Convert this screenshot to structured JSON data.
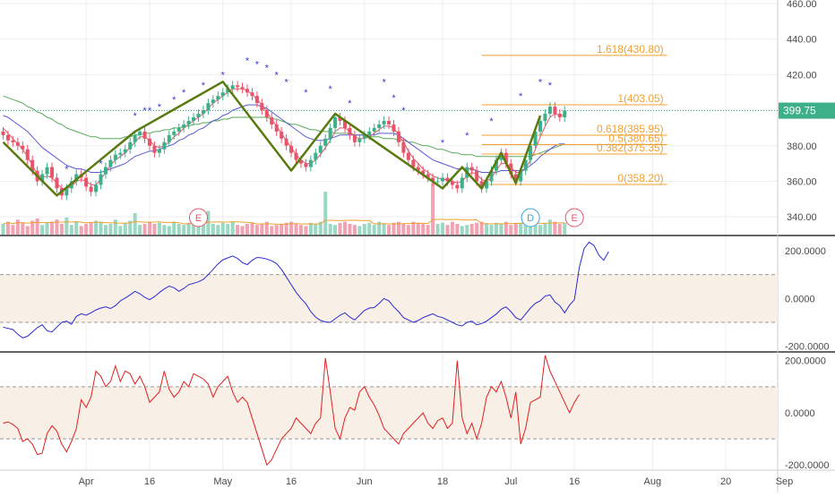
{
  "colors": {
    "up": "#3db08a",
    "down": "#e8546a",
    "volume_up": "#9ad8c4",
    "volume_down": "#f2a2b0",
    "ma_fast": "#e8546a",
    "ma_mid": "#5a5ad6",
    "ma_slow": "#5aaa5a",
    "zigzag": "#5a7a10",
    "fib": "#f0a030",
    "star": "#3a3ad6",
    "osc1": "#2a2ad0",
    "osc2": "#e02020",
    "band_fill": "#f8efe6",
    "last_price_bg": "#3db08a",
    "event_e": "#e8546a",
    "event_d": "#3aa3e0"
  },
  "chart_data": [
    {
      "type": "candlestick",
      "x_tick_labels": [
        "Apr",
        "16",
        "May",
        "16",
        "Jun",
        "18",
        "Jul",
        "16",
        "Aug",
        "20",
        "Sep"
      ],
      "y_tick_labels": [
        "460.00",
        "440.00",
        "420.00",
        "400.00",
        "380.00",
        "360.00",
        "340.00"
      ],
      "ylim": [
        330,
        462
      ],
      "y_ticks": [
        460,
        440,
        420,
        400,
        380,
        360,
        340
      ],
      "last_price_label": "399.75",
      "last_price": 399.75,
      "close": [
        386,
        383,
        382,
        380,
        378,
        372,
        366,
        360,
        364,
        368,
        362,
        356,
        352,
        356,
        360,
        364,
        362,
        357,
        354,
        358,
        364,
        368,
        372,
        375,
        376,
        378,
        382,
        386,
        388,
        384,
        380,
        376,
        378,
        382,
        386,
        388,
        390,
        392,
        394,
        396,
        398,
        400,
        404,
        406,
        408,
        410,
        412,
        414,
        413,
        412,
        410,
        408,
        404,
        400,
        396,
        392,
        388,
        384,
        380,
        376,
        372,
        370,
        368,
        372,
        376,
        380,
        384,
        390,
        396,
        394,
        390,
        386,
        382,
        384,
        386,
        388,
        390,
        392,
        394,
        392,
        388,
        382,
        376,
        372,
        368,
        366,
        364,
        362,
        360,
        360,
        362,
        360,
        358,
        356,
        362,
        368,
        366,
        360,
        356,
        360,
        366,
        372,
        376,
        370,
        364,
        360,
        366,
        372,
        380,
        388,
        394,
        398,
        402,
        398,
        396,
        399.75
      ],
      "ma_fast": [
        390,
        387,
        384,
        381,
        378,
        374,
        369,
        364,
        362,
        363,
        362,
        359,
        356,
        356,
        357,
        360,
        361,
        360,
        358,
        358,
        361,
        365,
        369,
        372,
        374,
        376,
        379,
        382,
        385,
        385,
        383,
        380,
        379,
        380,
        382,
        385,
        387,
        390,
        392,
        394,
        396,
        398,
        401,
        404,
        406,
        408,
        410,
        412,
        412,
        412,
        411,
        409,
        406,
        403,
        399,
        395,
        391,
        387,
        383,
        379,
        375,
        372,
        370,
        370,
        372,
        375,
        379,
        383,
        388,
        390,
        390,
        388,
        385,
        384,
        384,
        385,
        387,
        389,
        391,
        391,
        390,
        386,
        382,
        377,
        373,
        370,
        367,
        365,
        363,
        362,
        361,
        361,
        360,
        359,
        360,
        363,
        365,
        364,
        361,
        360,
        362,
        366,
        370,
        370,
        368,
        365,
        365,
        367,
        372,
        378,
        385,
        391,
        396,
        398,
        397,
        397
      ],
      "ma_mid": [
        397,
        396,
        394,
        392,
        390,
        388,
        385,
        382,
        379,
        377,
        375,
        373,
        371,
        369,
        368,
        367,
        367,
        366,
        365,
        365,
        365,
        366,
        367,
        368,
        369,
        370,
        372,
        374,
        375,
        376,
        377,
        377,
        378,
        379,
        380,
        381,
        383,
        384,
        386,
        387,
        389,
        390,
        392,
        394,
        395,
        397,
        398,
        400,
        401,
        402,
        403,
        403,
        403,
        402,
        401,
        399,
        397,
        395,
        393,
        391,
        389,
        387,
        385,
        384,
        383,
        383,
        383,
        384,
        385,
        386,
        386,
        386,
        386,
        386,
        386,
        386,
        386,
        387,
        387,
        387,
        387,
        386,
        384,
        382,
        380,
        378,
        376,
        374,
        372,
        371,
        370,
        369,
        368,
        367,
        367,
        367,
        367,
        366,
        365,
        365,
        365,
        365,
        366,
        366,
        366,
        366,
        366,
        367,
        369,
        371,
        374,
        376,
        378,
        380,
        381,
        381
      ],
      "ma_slow": [
        408,
        407,
        406,
        405,
        404,
        402,
        401,
        399,
        398,
        396,
        395,
        393,
        392,
        390,
        389,
        388,
        387,
        386,
        385,
        385,
        384,
        384,
        384,
        384,
        384,
        385,
        385,
        386,
        386,
        387,
        387,
        388,
        388,
        389,
        389,
        390,
        390,
        391,
        391,
        392,
        392,
        393,
        393,
        394,
        394,
        395,
        395,
        396,
        396,
        396,
        396,
        396,
        396,
        396,
        396,
        395,
        395,
        394,
        393,
        392,
        392,
        391,
        390,
        389,
        389,
        388,
        388,
        388,
        387,
        387,
        387,
        387,
        386,
        386,
        386,
        385,
        385,
        385,
        384,
        384,
        384,
        383,
        383,
        382,
        382,
        381,
        380,
        380,
        379,
        378,
        378,
        377,
        376,
        376,
        375,
        375,
        375,
        374,
        374,
        374,
        374,
        374,
        374,
        374,
        374,
        374,
        374,
        374,
        374,
        375,
        376,
        377,
        378,
        379,
        380,
        381
      ],
      "zigzag": [
        [
          0,
          382
        ],
        [
          11,
          352
        ],
        [
          27,
          388
        ],
        [
          45,
          416
        ],
        [
          59,
          366
        ],
        [
          68,
          398
        ],
        [
          90,
          356
        ],
        [
          94,
          368
        ],
        [
          98,
          356
        ],
        [
          102,
          376
        ],
        [
          105,
          359
        ],
        [
          110,
          397
        ]
      ],
      "star_markers": [
        [
          13,
          365
        ],
        [
          20,
          368
        ],
        [
          27,
          395
        ],
        [
          29,
          398
        ],
        [
          30,
          398
        ],
        [
          32,
          400
        ],
        [
          35,
          404
        ],
        [
          37,
          408
        ],
        [
          41,
          412
        ],
        [
          45,
          418
        ],
        [
          50,
          426
        ],
        [
          52,
          424
        ],
        [
          54,
          422
        ],
        [
          56,
          418
        ],
        [
          58,
          414
        ],
        [
          62,
          408
        ],
        [
          67,
          410
        ],
        [
          71,
          402
        ],
        [
          78,
          414
        ],
        [
          80,
          405
        ],
        [
          82,
          398
        ],
        [
          90,
          380
        ],
        [
          95,
          384
        ],
        [
          100,
          392
        ],
        [
          106,
          406
        ],
        [
          110,
          414
        ],
        [
          112,
          412
        ]
      ],
      "fibonacci": {
        "levels": [
          {
            "label": "1.618(430.80)",
            "value": 430.8
          },
          {
            "label": "1(403.05)",
            "value": 403.05
          },
          {
            "label": "0.618(385.95)",
            "value": 385.95
          },
          {
            "label": "0.5(380.65)",
            "value": 380.65
          },
          {
            "label": "0.382(375.35)",
            "value": 375.35
          },
          {
            "label": "0(358.20)",
            "value": 358.2
          }
        ],
        "start_index": 98,
        "end_index": 136
      },
      "volume": [
        10,
        12,
        9,
        14,
        11,
        8,
        13,
        15,
        9,
        11,
        12,
        14,
        10,
        16,
        9,
        12,
        8,
        10,
        11,
        13,
        12,
        9,
        10,
        14,
        8,
        11,
        13,
        20,
        9,
        10,
        12,
        10,
        11,
        9,
        8,
        12,
        10,
        9,
        11,
        10,
        12,
        13,
        22,
        10,
        9,
        11,
        10,
        12,
        9,
        8,
        10,
        11,
        9,
        10,
        12,
        8,
        9,
        10,
        11,
        12,
        10,
        9,
        8,
        11,
        10,
        12,
        40,
        10,
        9,
        11,
        12,
        10,
        9,
        8,
        10,
        11,
        9,
        12,
        10,
        9,
        11,
        12,
        10,
        9,
        12,
        11,
        10,
        9,
        48,
        10,
        11,
        9,
        12,
        10,
        8,
        9,
        10,
        11,
        12,
        10,
        9,
        11,
        10,
        12,
        9,
        10,
        11,
        12,
        10,
        11,
        9,
        10,
        14,
        12,
        10,
        11
      ],
      "events": [
        {
          "label": "E",
          "index": 40
        },
        {
          "label": "D",
          "index": 108
        },
        {
          "label": "E",
          "index": 117
        }
      ]
    },
    {
      "type": "line",
      "y_tick_labels": [
        "200.0000",
        "0.0000",
        "-200.0000"
      ],
      "y_ticks": [
        200,
        0,
        -200
      ],
      "ylim": [
        -220,
        260
      ],
      "band": [
        -100,
        100
      ],
      "values": [
        -120,
        -125,
        -130,
        -150,
        -165,
        -158,
        -140,
        -122,
        -110,
        -135,
        -140,
        -120,
        -100,
        -95,
        -108,
        -75,
        -64,
        -70,
        -60,
        -48,
        -40,
        -35,
        -42,
        -30,
        -10,
        2,
        15,
        30,
        20,
        5,
        -5,
        8,
        25,
        40,
        52,
        45,
        30,
        42,
        58,
        64,
        70,
        80,
        100,
        122,
        145,
        162,
        170,
        178,
        168,
        150,
        142,
        160,
        172,
        170,
        165,
        158,
        146,
        122,
        90,
        58,
        26,
        0,
        -22,
        -55,
        -78,
        -92,
        -98,
        -100,
        -85,
        -70,
        -60,
        -78,
        -90,
        -70,
        -50,
        -40,
        -38,
        -20,
        0,
        -10,
        -35,
        -55,
        -80,
        -90,
        -100,
        -92,
        -80,
        -72,
        -64,
        -75,
        -80,
        -90,
        -100,
        -110,
        -115,
        -100,
        -95,
        -110,
        -105,
        -95,
        -80,
        -65,
        -45,
        -35,
        -55,
        -80,
        -90,
        -65,
        -40,
        -20,
        -10,
        10,
        15,
        -15,
        -30,
        -60,
        -28,
        -5,
        130,
        210,
        236,
        222,
        182,
        160,
        196
      ]
    },
    {
      "type": "line",
      "y_tick_labels": [
        "200.0000",
        "0.0000",
        "-200.0000"
      ],
      "y_ticks": [
        200,
        0,
        -200
      ],
      "ylim": [
        -220,
        230
      ],
      "band": [
        -100,
        100
      ],
      "values": [
        -40,
        -35,
        -45,
        -60,
        -110,
        -100,
        -120,
        -160,
        -155,
        -80,
        -50,
        -70,
        -120,
        -150,
        -110,
        -60,
        50,
        20,
        60,
        160,
        140,
        100,
        120,
        180,
        120,
        160,
        150,
        110,
        140,
        100,
        40,
        60,
        80,
        160,
        90,
        60,
        80,
        120,
        100,
        150,
        140,
        130,
        110,
        60,
        100,
        120,
        140,
        80,
        40,
        60,
        40,
        -20,
        -80,
        -140,
        -200,
        -180,
        -140,
        -100,
        -80,
        -60,
        -20,
        -40,
        -60,
        -80,
        -40,
        -20,
        210,
        80,
        -60,
        -100,
        -20,
        20,
        10,
        80,
        100,
        60,
        30,
        -10,
        -60,
        -80,
        -100,
        -120,
        -80,
        -60,
        -40,
        -20,
        0,
        -40,
        -60,
        -30,
        -20,
        -60,
        -40,
        200,
        -20,
        -80,
        -40,
        -100,
        -40,
        60,
        100,
        80,
        120,
        60,
        -20,
        80,
        -120,
        -60,
        40,
        50,
        60,
        220,
        160,
        120,
        80,
        40,
        0,
        40,
        70
      ]
    }
  ]
}
